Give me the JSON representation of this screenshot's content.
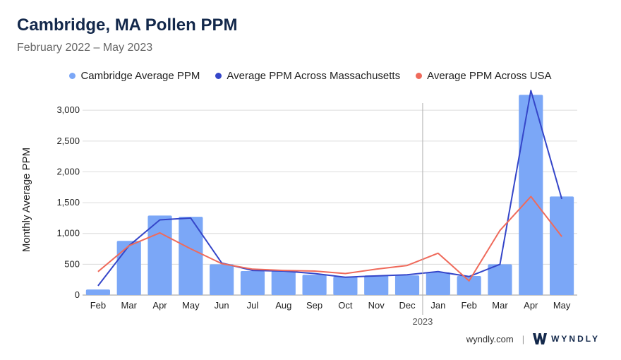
{
  "header": {
    "title": "Cambridge, MA Pollen PPM",
    "subtitle": "February 2022 – May 2023"
  },
  "footer": {
    "site": "wyndly.com",
    "separator": "|",
    "brand": "WYNDLY"
  },
  "colors": {
    "bar": "#7ba7f7",
    "massachusetts": "#3546c9",
    "usa": "#ef6a5b",
    "title": "#13284b"
  },
  "chart_data": {
    "type": "bar",
    "title": "Cambridge, MA Pollen PPM",
    "subtitle": "February 2022 – May 2023",
    "ylabel": "Monthly Average PPM",
    "xlabel": "",
    "ylim": [
      0,
      3300
    ],
    "yticks": [
      0,
      500,
      1000,
      1500,
      2000,
      2500,
      3000
    ],
    "ytick_labels": [
      "0",
      "500",
      "1,000",
      "1,500",
      "2,000",
      "2,500",
      "3,000"
    ],
    "grid": true,
    "legend_position": "top-center",
    "year_marker": {
      "label": "2023",
      "before_index": 11
    },
    "categories": [
      "Feb",
      "Mar",
      "Apr",
      "May",
      "Jun",
      "Jul",
      "Aug",
      "Sep",
      "Oct",
      "Nov",
      "Dec",
      "Jan",
      "Feb",
      "Mar",
      "Apr",
      "May"
    ],
    "series": [
      {
        "name": "Cambridge Average PPM",
        "type": "bar",
        "values": [
          90,
          880,
          1290,
          1270,
          500,
          390,
          390,
          330,
          300,
          320,
          320,
          370,
          310,
          500,
          3250,
          1600
        ]
      },
      {
        "name": "Average PPM Across Massachusetts",
        "type": "line",
        "values": [
          150,
          800,
          1220,
          1250,
          520,
          400,
          390,
          350,
          290,
          310,
          330,
          380,
          300,
          500,
          3320,
          1560
        ]
      },
      {
        "name": "Average PPM Across USA",
        "type": "line",
        "values": [
          380,
          800,
          1010,
          750,
          510,
          420,
          400,
          390,
          350,
          420,
          480,
          680,
          230,
          1050,
          1600,
          950
        ]
      }
    ]
  }
}
